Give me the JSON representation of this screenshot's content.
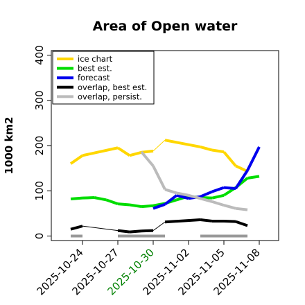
{
  "chart_data": {
    "type": "line",
    "title": "Area of Open water",
    "xlabel": "",
    "ylabel": "1000 km2",
    "ylim": [
      -10,
      410
    ],
    "yticks": [
      0,
      100,
      200,
      300,
      400
    ],
    "xlim": [
      "2025-10-23",
      "2025-11-08"
    ],
    "xticks": [
      {
        "date": "2025-10-24",
        "label": "2025-10-24",
        "color": "#000000"
      },
      {
        "date": "2025-10-27",
        "label": "2025-10-27",
        "color": "#000000"
      },
      {
        "date": "2025-10-30",
        "label": "2025-10-30",
        "color": "#008000"
      },
      {
        "date": "2025-11-02",
        "label": "2025-11-02",
        "color": "#000000"
      },
      {
        "date": "2025-11-05",
        "label": "2025-11-05",
        "color": "#000000"
      },
      {
        "date": "2025-11-08",
        "label": "2025-11-08",
        "color": "#000000"
      }
    ],
    "legend_position": "top-left",
    "grid": false,
    "series": [
      {
        "name": "ice chart",
        "color": "#ffd700",
        "points": [
          {
            "x": "2025-10-23",
            "y": 160,
            "thick": true
          },
          {
            "x": "2025-10-24",
            "y": 178,
            "thick": true
          },
          {
            "x": "2025-10-27",
            "y": 195,
            "thick": true
          },
          {
            "x": "2025-10-28",
            "y": 178,
            "thick": true
          },
          {
            "x": "2025-10-29",
            "y": 185,
            "thick": true
          },
          {
            "x": "2025-10-30",
            "y": 188,
            "thick": true
          },
          {
            "x": "2025-10-31",
            "y": 212,
            "thick": false
          },
          {
            "x": "2025-11-03",
            "y": 197,
            "thick": true
          },
          {
            "x": "2025-11-04",
            "y": 190,
            "thick": true
          },
          {
            "x": "2025-11-05",
            "y": 186,
            "thick": true
          },
          {
            "x": "2025-11-06",
            "y": 155,
            "thick": true
          },
          {
            "x": "2025-11-07",
            "y": 143,
            "thick": true
          }
        ]
      },
      {
        "name": "best est.",
        "color": "#00dd00",
        "points": [
          {
            "x": "2025-10-23",
            "y": 82,
            "thick": true
          },
          {
            "x": "2025-10-24",
            "y": 84,
            "thick": true
          },
          {
            "x": "2025-10-25",
            "y": 85,
            "thick": true
          },
          {
            "x": "2025-10-26",
            "y": 80,
            "thick": true
          },
          {
            "x": "2025-10-27",
            "y": 71,
            "thick": true
          },
          {
            "x": "2025-10-28",
            "y": 69,
            "thick": true
          },
          {
            "x": "2025-10-29",
            "y": 65,
            "thick": true
          },
          {
            "x": "2025-10-30",
            "y": 67,
            "thick": true
          },
          {
            "x": "2025-10-31",
            "y": 72,
            "thick": true
          },
          {
            "x": "2025-11-01",
            "y": 80,
            "thick": true
          },
          {
            "x": "2025-11-02",
            "y": 88,
            "thick": true
          },
          {
            "x": "2025-11-03",
            "y": 85,
            "thick": true
          },
          {
            "x": "2025-11-04",
            "y": 84,
            "thick": true
          },
          {
            "x": "2025-11-05",
            "y": 90,
            "thick": true
          },
          {
            "x": "2025-11-06",
            "y": 107,
            "thick": true
          },
          {
            "x": "2025-11-07",
            "y": 128,
            "thick": true
          },
          {
            "x": "2025-11-08",
            "y": 132,
            "thick": true
          }
        ]
      },
      {
        "name": "forecast",
        "color": "#0000ee",
        "points": [
          {
            "x": "2025-10-30",
            "y": 61,
            "thick": true
          },
          {
            "x": "2025-10-31",
            "y": 70,
            "thick": true
          },
          {
            "x": "2025-11-01",
            "y": 90,
            "thick": true
          },
          {
            "x": "2025-11-02",
            "y": 83,
            "thick": true
          },
          {
            "x": "2025-11-03",
            "y": 87,
            "thick": true
          },
          {
            "x": "2025-11-04",
            "y": 98,
            "thick": true
          },
          {
            "x": "2025-11-05",
            "y": 107,
            "thick": true
          },
          {
            "x": "2025-11-06",
            "y": 105,
            "thick": true
          },
          {
            "x": "2025-11-07",
            "y": 145,
            "thick": true
          },
          {
            "x": "2025-11-08",
            "y": 197,
            "thick": true
          }
        ]
      },
      {
        "name": "overlap, best est.",
        "color": "#000000",
        "points": [
          {
            "x": "2025-10-23",
            "y": 15,
            "thick": true
          },
          {
            "x": "2025-10-24",
            "y": 22,
            "thick": true
          },
          {
            "x": "2025-10-27",
            "y": 12,
            "thick": false
          },
          {
            "x": "2025-10-28",
            "y": 9,
            "thick": true
          },
          {
            "x": "2025-10-29",
            "y": 11,
            "thick": true
          },
          {
            "x": "2025-10-30",
            "y": 12,
            "thick": true
          },
          {
            "x": "2025-10-31",
            "y": 31,
            "thick": false
          },
          {
            "x": "2025-11-03",
            "y": 36,
            "thick": true
          },
          {
            "x": "2025-11-04",
            "y": 33,
            "thick": true
          },
          {
            "x": "2025-11-05",
            "y": 33,
            "thick": true
          },
          {
            "x": "2025-11-06",
            "y": 32,
            "thick": true
          },
          {
            "x": "2025-11-07",
            "y": 23,
            "thick": true
          }
        ]
      },
      {
        "name": "overlap, persist.",
        "color": "#bbbbbb",
        "points": [
          {
            "x": "2025-10-29",
            "y": 186,
            "thick": true
          },
          {
            "x": "2025-10-30",
            "y": 155,
            "thick": true
          },
          {
            "x": "2025-10-31",
            "y": 103,
            "thick": true
          },
          {
            "x": "2025-11-01",
            "y": 95,
            "thick": true
          },
          {
            "x": "2025-11-02",
            "y": 90,
            "thick": true
          },
          {
            "x": "2025-11-03",
            "y": 83,
            "thick": true
          },
          {
            "x": "2025-11-04",
            "y": 76,
            "thick": true
          },
          {
            "x": "2025-11-05",
            "y": 68,
            "thick": true
          },
          {
            "x": "2025-11-06",
            "y": 61,
            "thick": true
          },
          {
            "x": "2025-11-07",
            "y": 58,
            "thick": true
          }
        ]
      },
      {
        "name": "",
        "color": "#999999",
        "points": [
          {
            "x": "2025-10-23",
            "y": 0,
            "thick": true
          },
          {
            "x": "2025-10-24",
            "y": 0,
            "thick": true
          },
          {
            "x": "2025-10-27",
            "y": 0,
            "gap": true
          },
          {
            "x": "2025-10-31",
            "y": 0,
            "thick": true
          },
          {
            "x": "2025-11-03",
            "y": 0,
            "gap": true
          },
          {
            "x": "2025-11-07",
            "y": 0,
            "thick": true
          }
        ]
      }
    ]
  }
}
